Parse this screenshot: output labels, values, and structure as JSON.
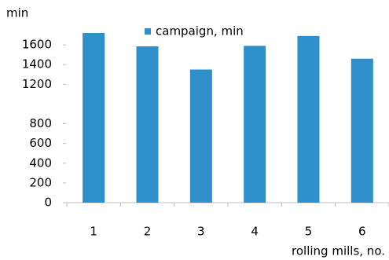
{
  "chart_data": {
    "type": "bar",
    "y_label": "min",
    "x_label": "rolling mills, no.",
    "categories": [
      "1",
      "2",
      "3",
      "4",
      "5",
      "6"
    ],
    "series": [
      {
        "name": "campaign, min",
        "color": "#2e8fca",
        "values": [
          1720,
          1585,
          1350,
          1590,
          1690,
          1460
        ]
      }
    ],
    "ylim": [
      0,
      1800
    ],
    "yticks": [
      0,
      200,
      400,
      600,
      800,
      1200,
      1400,
      1600
    ],
    "legend": "top"
  }
}
